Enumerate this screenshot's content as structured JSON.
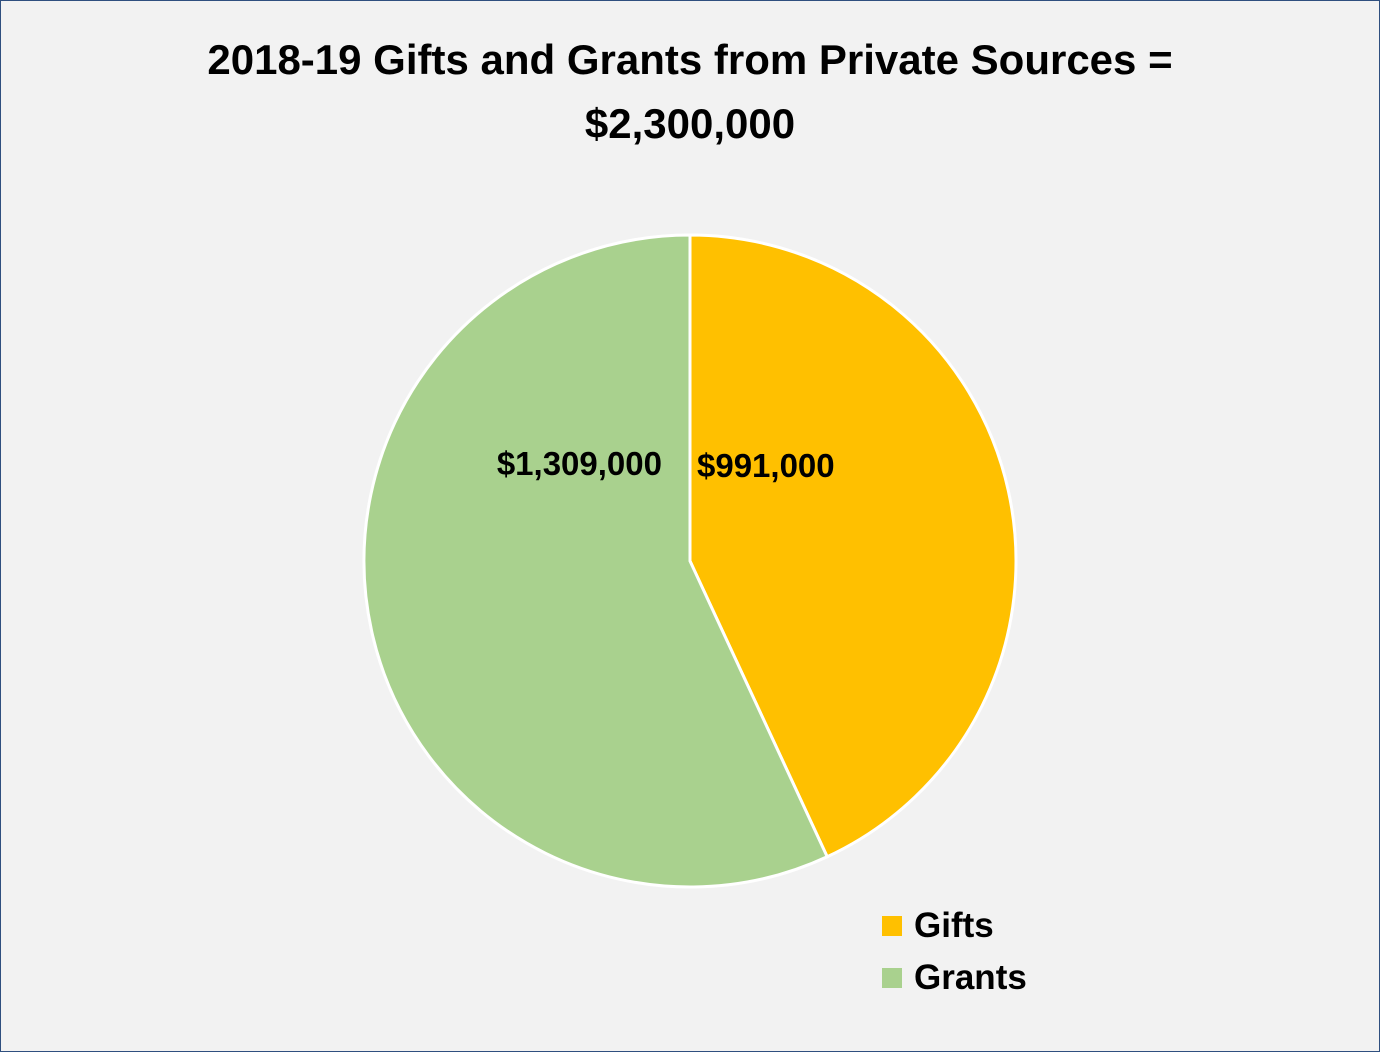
{
  "chart_data": {
    "type": "pie",
    "title_line1": "2018-19 Gifts and Grants from Private Sources =",
    "title_line2": "$2,300,000",
    "slices": [
      {
        "name": "Gifts",
        "value": 991000,
        "label": "$991,000",
        "color": "#ffc000"
      },
      {
        "name": "Grants",
        "value": 1309000,
        "label": "$1,309,000",
        "color": "#a9d18e"
      }
    ],
    "start_angle": "12 o'clock",
    "direction": "clockwise",
    "legend_position": "bottom-right"
  }
}
